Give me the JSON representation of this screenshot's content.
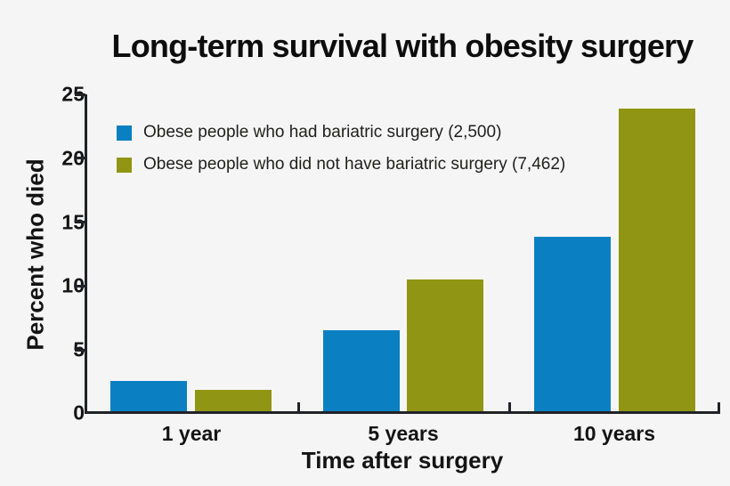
{
  "chart_data": {
    "type": "bar",
    "title": "Long-term survival with obesity surgery",
    "xlabel": "Time after surgery",
    "ylabel": "Percent who died",
    "categories": [
      "1 year",
      "5 years",
      "10 years"
    ],
    "series": [
      {
        "name": "Obese people who had bariatric surgery (2,500)",
        "color": "#0a80c2",
        "values": [
          2.4,
          6.4,
          13.8
        ]
      },
      {
        "name": "Obese people who did not have bariatric surgery (7,462)",
        "color": "#909613",
        "values": [
          1.7,
          10.4,
          23.9
        ]
      }
    ],
    "ylim": [
      0,
      25
    ],
    "yticks": [
      25,
      20,
      15,
      10,
      5,
      0
    ],
    "grid": false,
    "legend_position": "inside-top-left",
    "background_color": "#f5f5f6",
    "axis_color": "#202227"
  }
}
